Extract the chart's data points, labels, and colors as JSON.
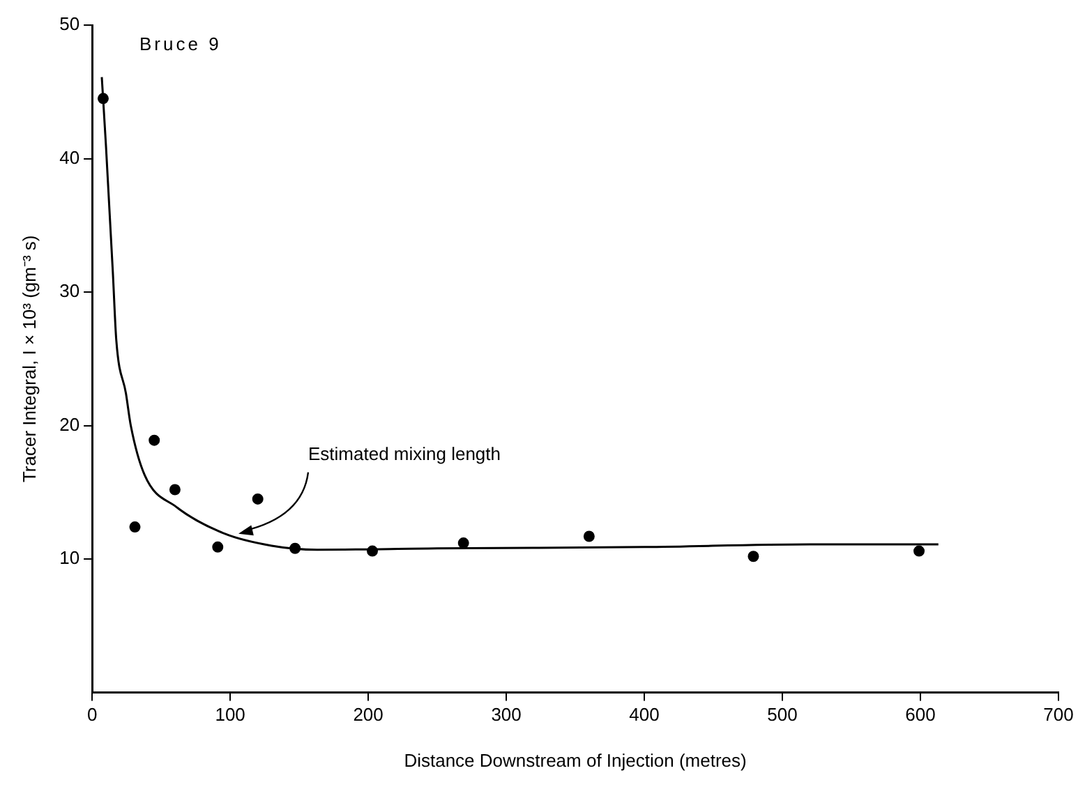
{
  "chart_data": {
    "type": "scatter",
    "title": "Bruce 9",
    "xlabel": "Distance Downstream of Injection (metres)",
    "ylabel": "Tracer Integral, I × 10³ (gm⁻³ s)",
    "xlim": [
      0,
      700
    ],
    "xticks": [
      0,
      100,
      200,
      300,
      400,
      500,
      600,
      700
    ],
    "ylim": [
      0,
      50
    ],
    "yticks": [
      10,
      20,
      30,
      40,
      50
    ],
    "grid": false,
    "legend": false,
    "annotations": [
      {
        "text": "Estimated mixing length",
        "x": 106,
        "y": 11.9
      }
    ],
    "series": [
      {
        "marker": "circle",
        "color": "#000000",
        "x": [
          8,
          31,
          45,
          60,
          91,
          120,
          147,
          203,
          269,
          360,
          479,
          599
        ],
        "values": [
          44.5,
          12.4,
          18.9,
          15.2,
          10.9,
          14.5,
          10.8,
          10.6,
          11.2,
          11.7,
          10.2,
          10.6
        ]
      },
      {
        "type": "line",
        "marker": "none",
        "color": "#000000",
        "x": [
          7,
          10,
          15,
          17.5,
          24.5,
          28,
          38,
          61,
          96,
          130,
          163,
          250,
          400,
          520,
          613
        ],
        "values": [
          46.1,
          41,
          31.5,
          26.4,
          22.4,
          20,
          16.3,
          13.9,
          11.9,
          11.0,
          10.7,
          10.8,
          10.9,
          11.1,
          11.1
        ]
      }
    ]
  }
}
